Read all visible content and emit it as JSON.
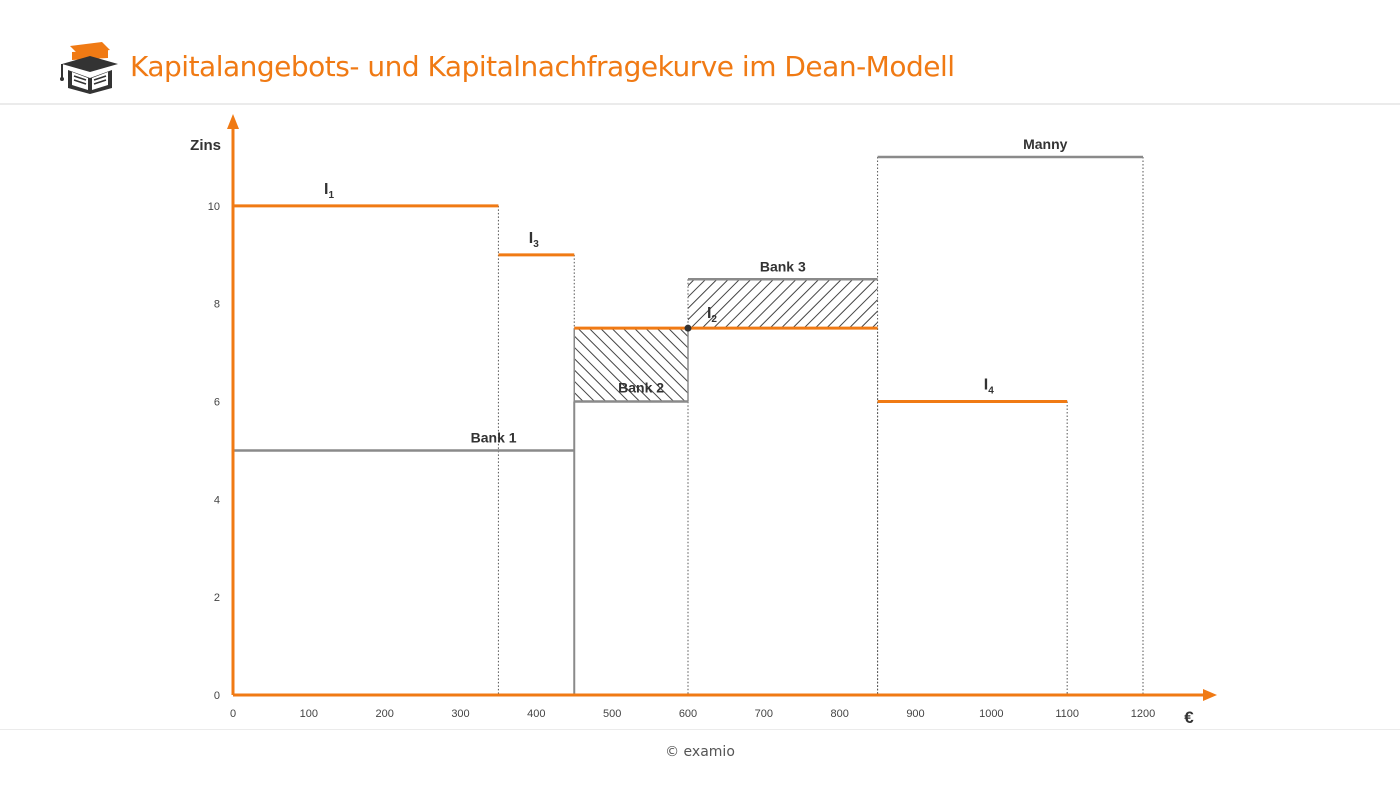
{
  "header": {
    "title": "Kapitalangebots- und Kapitalnachfragekurve im Dean-Modell",
    "logo_icon": "graduation-cap-book-icon"
  },
  "footer": {
    "copyright": "© examio"
  },
  "colors": {
    "accent": "#f07a14",
    "supply": "#8a8a8a",
    "axis": "#f07a14",
    "hatch": "#444444"
  },
  "chart_data": {
    "type": "step",
    "title": "",
    "xlabel": "€",
    "ylabel": "Zins",
    "xlim": [
      0,
      1200
    ],
    "ylim": [
      0,
      11
    ],
    "x_ticks": [
      0,
      100,
      200,
      300,
      400,
      500,
      600,
      700,
      800,
      900,
      1000,
      1100,
      1200
    ],
    "y_ticks": [
      0,
      2,
      4,
      6,
      8,
      10
    ],
    "demand": [
      {
        "label": "I",
        "sub": "1",
        "x0": 0,
        "x1": 350,
        "y": 10
      },
      {
        "label": "I",
        "sub": "3",
        "x0": 350,
        "x1": 450,
        "y": 9
      },
      {
        "label": "I",
        "sub": "2",
        "x0": 450,
        "x1": 850,
        "y": 7.5
      },
      {
        "label": "I",
        "sub": "4",
        "x0": 850,
        "x1": 1100,
        "y": 6
      }
    ],
    "supply": [
      {
        "label": "Bank 1",
        "x0": 0,
        "x1": 450,
        "y": 5
      },
      {
        "label": "Bank 2",
        "x0": 450,
        "x1": 600,
        "y": 6
      },
      {
        "label": "Bank 3",
        "x0": 600,
        "x1": 850,
        "y": 8.5
      },
      {
        "label": "Manny",
        "x0": 850,
        "x1": 1200,
        "y": 11
      }
    ],
    "hatched_areas": [
      {
        "x0": 450,
        "x1": 600,
        "y0": 6,
        "y1": 7.5
      },
      {
        "x0": 600,
        "x1": 850,
        "y0": 7.5,
        "y1": 8.5
      }
    ],
    "intersection": {
      "x": 600,
      "y": 7.5
    }
  }
}
